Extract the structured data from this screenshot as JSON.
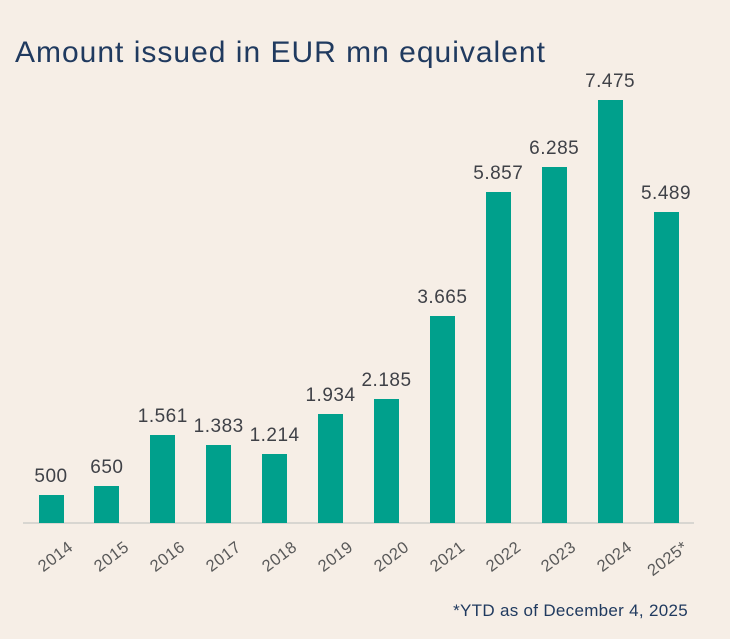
{
  "chart_data": {
    "type": "bar",
    "title": "Amount issued in EUR mn equivalent",
    "categories": [
      "2014",
      "2015",
      "2016",
      "2017",
      "2018",
      "2019",
      "2020",
      "2021",
      "2022",
      "2023",
      "2024",
      "2025*"
    ],
    "values": [
      500,
      650,
      1561,
      1383,
      1214,
      1934,
      2185,
      3665,
      5857,
      6285,
      7475,
      5489
    ],
    "value_labels": [
      "500",
      "650",
      "1.561",
      "1.383",
      "1.214",
      "1.934",
      "2.185",
      "3.665",
      "5.857",
      "6.285",
      "7.475",
      "5.489"
    ],
    "footnote": "*YTD as of December 4, 2025",
    "xlabel": "",
    "ylabel": "",
    "ylim": [
      0,
      7475
    ],
    "grid": false,
    "legend": false,
    "colors": {
      "bar": "#00A08C",
      "background": "#F6EEE6",
      "title": "#203A5F",
      "value_label": "#3F4147",
      "tick_label": "#595959",
      "axis_line": "#D8D6D1",
      "footnote": "#203A5F"
    }
  }
}
